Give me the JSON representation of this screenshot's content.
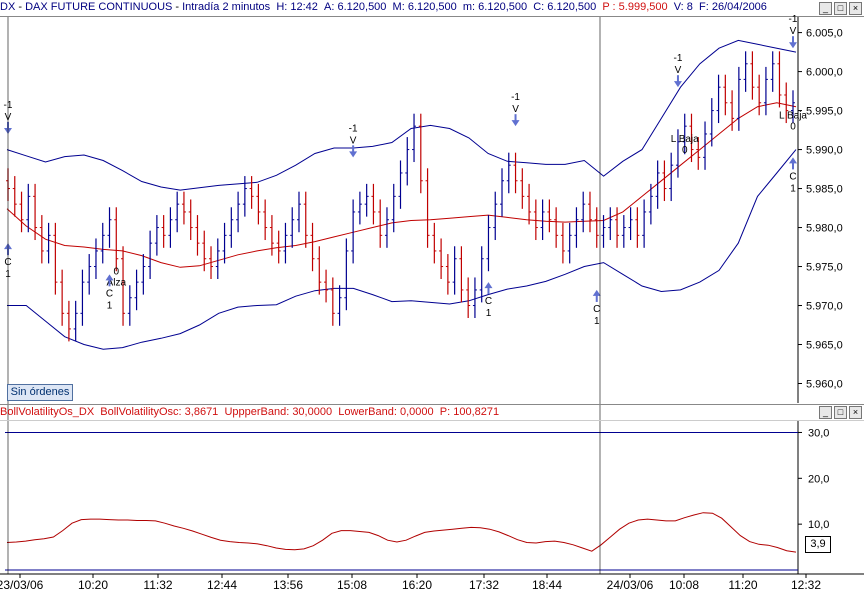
{
  "header": {
    "symbol": "DX",
    "name": "DAX FUTURE CONTINUOUS",
    "period": "Intradía 2 minutos",
    "h": "H: 12:42",
    "a": "A: 6.120,500",
    "m": "M: 6.120,500",
    "mn": "m: 6.120,500",
    "c": "C: 6.120,500",
    "p": "P : 5.999,500",
    "v": "V: 8",
    "f": "F: 26/04/2006",
    "color_blue": "#000080",
    "color_red": "#d01010"
  },
  "subheader": {
    "title": "BollVolatilityOs_DX",
    "name": "BollVolatilityOsc:",
    "value": "3,8671",
    "upper": "UppperBand: 30,0000",
    "lower": "LowerBand: 0,0000",
    "p": "P: 100,8271"
  },
  "orders_button": "Sin órdenes",
  "osc_last": "3,9",
  "window_buttons": [
    "minimize-icon",
    "maximize-icon",
    "close-icon"
  ],
  "chart_data": [
    {
      "type": "bar",
      "subtype": "ohlc",
      "ylim": [
        5957.5,
        6007.0
      ],
      "yticks": [
        5960.0,
        5965.0,
        5970.0,
        5975.0,
        5980.0,
        5985.0,
        5990.0,
        5995.0,
        6000.0,
        6005.0
      ],
      "ytick_labels": [
        "5.960,0",
        "5.965,0",
        "5.970,0",
        "5.975,0",
        "5.980,0",
        "5.985,0",
        "5.990,0",
        "5.995,0",
        "6.000,0",
        "6.005,0"
      ],
      "xtick_labels": [
        "23/03/06",
        "10:20",
        "11:32",
        "12:44",
        "13:56",
        "15:08",
        "16:20",
        "17:32",
        "18:44",
        "24/03/06",
        "10:08",
        "11:20",
        "12:32"
      ],
      "colors": {
        "up": "#000090",
        "down": "#c00000",
        "band": "#000090",
        "average": "#c00000",
        "arrow": "#6070d0"
      },
      "series": [
        {
          "name": "upper-band",
          "style": "line",
          "color": "#000090",
          "values": [
            5990.0,
            5989.2,
            5988.4,
            5989.1,
            5989.3,
            5988.6,
            5987.3,
            5985.9,
            5985.2,
            5984.8,
            5985.1,
            5985.4,
            5985.6,
            5985.8,
            5986.7,
            5988.0,
            5989.5,
            5990.2,
            5990.2,
            5990.4,
            5990.9,
            5992.7,
            5993.1,
            5992.7,
            5991.5,
            5989.5,
            5988.5,
            5988.3,
            5988.1,
            5988.1,
            5988.6,
            5986.6,
            5988.5,
            5990.0,
            5994.0,
            5998.0,
            6001.0,
            6003.0,
            6004.0,
            6003.5,
            6003.0,
            6002.5
          ]
        },
        {
          "name": "moving-average",
          "style": "line",
          "color": "#c00000",
          "values": [
            5982.4,
            5980.2,
            5978.5,
            5977.7,
            5977.5,
            5977.2,
            5977.0,
            5976.4,
            5975.5,
            5974.9,
            5975.1,
            5975.8,
            5976.5,
            5977.0,
            5977.4,
            5977.7,
            5978.2,
            5978.8,
            5979.4,
            5980.0,
            5980.6,
            5980.9,
            5981.0,
            5981.2,
            5981.4,
            5981.6,
            5981.3,
            5981.0,
            5980.8,
            5980.7,
            5980.8,
            5980.9,
            5982.0,
            5984.0,
            5986.0,
            5988.0,
            5990.0,
            5992.0,
            5994.0,
            5995.5,
            5996.0,
            5995.5
          ]
        },
        {
          "name": "lower-band",
          "style": "line",
          "color": "#000090",
          "values": [
            5970.0,
            5970.0,
            5968.0,
            5966.0,
            5965.0,
            5964.4,
            5964.6,
            5965.3,
            5965.8,
            5966.4,
            5967.5,
            5969.0,
            5969.8,
            5970.0,
            5970.1,
            5971.2,
            5971.9,
            5972.2,
            5972.2,
            5971.4,
            5970.5,
            5970.6,
            5970.4,
            5970.2,
            5970.6,
            5971.4,
            5972.1,
            5972.5,
            5973.1,
            5974.0,
            5975.0,
            5975.5,
            5974.0,
            5972.5,
            5971.8,
            5972.0,
            5973.0,
            5974.5,
            5978.0,
            5984.0,
            5987.0,
            5990.0
          ]
        },
        {
          "name": "price",
          "style": "ohlc",
          "closes": [
            5985,
            5983,
            5981,
            5984,
            5980,
            5977,
            5979,
            5973,
            5969,
            5967,
            5969,
            5973,
            5975,
            5977,
            5979,
            5981,
            5976,
            5969,
            5971,
            5973,
            5975,
            5978,
            5980,
            5979,
            5981,
            5983,
            5982,
            5980,
            5978,
            5976,
            5975,
            5977,
            5979,
            5981,
            5983,
            5985,
            5984,
            5982,
            5980,
            5978,
            5977,
            5979,
            5981,
            5983,
            5979,
            5976,
            5973,
            5972,
            5969,
            5971,
            5977,
            5982,
            5983,
            5984,
            5982,
            5979,
            5981,
            5984,
            5987,
            5990,
            5993,
            5986,
            5979,
            5977,
            5975,
            5973,
            5976,
            5972,
            5970,
            5972,
            5976,
            5980,
            5983,
            5986,
            5988,
            5986,
            5984,
            5982,
            5980,
            5982,
            5981,
            5979,
            5977,
            5979,
            5981,
            5983,
            5981,
            5979,
            5980,
            5981,
            5979,
            5980,
            5981,
            5979,
            5982,
            5984,
            5987,
            5985,
            5988,
            5991,
            5993,
            5990,
            5989,
            5992,
            5995,
            5998,
            5996,
            5994,
            5999,
            6001,
            5998,
            5996,
            5999,
            6001,
            5997,
            5995,
            5996
          ]
        }
      ],
      "annotations": [
        {
          "text": "-1\nV",
          "kind": "sell-signal",
          "x_index": 0
        },
        {
          "text": "C\n1",
          "kind": "buy-signal",
          "x_index": 0
        },
        {
          "text": "0\nAlza",
          "kind": "label",
          "x_index": 16
        },
        {
          "text": "C\n1",
          "kind": "buy-signal",
          "x_index": 15
        },
        {
          "text": "-1\nV",
          "kind": "sell-signal",
          "x_index": 51
        },
        {
          "text": "C\n1",
          "kind": "buy-signal",
          "x_index": 71
        },
        {
          "text": "-1\nV",
          "kind": "sell-signal",
          "x_index": 75
        },
        {
          "text": "C\n1",
          "kind": "buy-signal",
          "x_index": 87
        },
        {
          "text": "-1\nV",
          "kind": "sell-signal",
          "x_index": 99
        },
        {
          "text": "L Baja\n0",
          "kind": "label",
          "x_index": 100
        },
        {
          "text": "-1\nV",
          "kind": "sell-signal",
          "x_index": 132
        },
        {
          "text": "C\n1",
          "kind": "buy-signal",
          "x_index": 132
        },
        {
          "text": "L Baja\n0",
          "kind": "label",
          "x_index": 139
        }
      ]
    },
    {
      "type": "line",
      "name": "BollVolatilityOsc",
      "ylim": [
        0,
        32.5
      ],
      "yticks": [
        10.0,
        20.0,
        30.0
      ],
      "ytick_labels": [
        "10,0",
        "20,0",
        "30,0"
      ],
      "reference_lines": [
        0.0,
        30.0
      ],
      "color": "#b00000",
      "values": [
        6.0,
        6.1,
        6.3,
        6.6,
        6.8,
        7.2,
        8.6,
        10.2,
        11.0,
        11.1,
        11.1,
        11.0,
        10.9,
        10.9,
        10.8,
        10.8,
        10.7,
        10.2,
        9.6,
        9.1,
        8.5,
        7.8,
        7.1,
        6.5,
        6.2,
        6.0,
        5.9,
        5.7,
        5.3,
        4.8,
        4.5,
        4.4,
        4.6,
        5.3,
        6.5,
        8.0,
        8.6,
        8.6,
        8.4,
        8.2,
        7.5,
        6.5,
        6.1,
        6.5,
        7.4,
        8.2,
        8.5,
        8.7,
        8.9,
        9.1,
        9.3,
        9.2,
        8.9,
        8.3,
        7.5,
        6.6,
        6.0,
        5.9,
        6.2,
        6.3,
        6.0,
        5.5,
        4.8,
        4.1,
        5.5,
        7.2,
        8.9,
        10.2,
        10.9,
        11.1,
        10.9,
        10.7,
        10.7,
        11.4,
        12.0,
        12.5,
        12.4,
        11.3,
        9.4,
        7.5,
        6.2,
        5.6,
        5.4,
        4.9,
        4.2,
        3.9
      ]
    }
  ]
}
